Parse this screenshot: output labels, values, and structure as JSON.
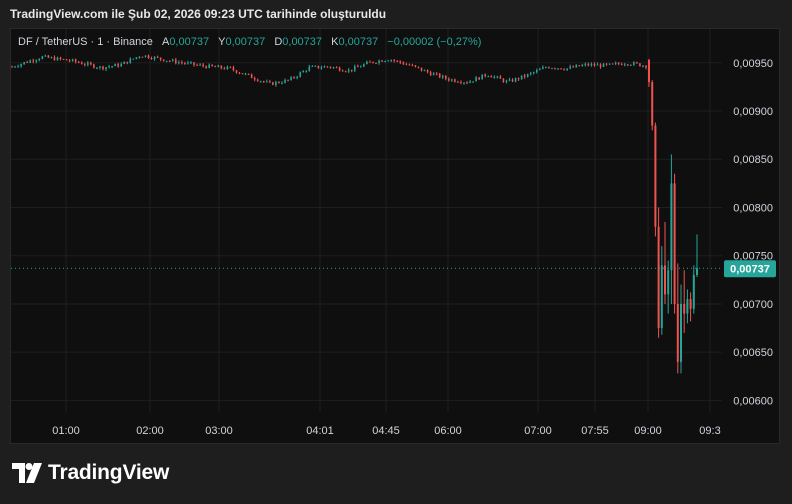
{
  "header": {
    "title": "TradingView.com ile Şub 02, 2026 09:23 UTC tarihinde oluşturuldu"
  },
  "legend": {
    "symbol": "DF / TetherUS · 1 · Binance",
    "open_label": "A",
    "open": "0,00737",
    "high_label": "Y",
    "high": "0,00737",
    "low_label": "D",
    "low": "0,00737",
    "close_label": "K",
    "close": "0,00737",
    "change": "−0,00002 (−0,27%)"
  },
  "logo": {
    "text": "TradingView"
  },
  "colors": {
    "up": "#26a69a",
    "down": "#ef5350",
    "background": "#0f0f0f",
    "grid": "#1f1f1f",
    "price_badge": "#26a69a"
  },
  "chart_data": {
    "type": "candlestick",
    "y_ticks": [
      "0,00950",
      "0,00900",
      "0,00850",
      "0,00800",
      "0,00750",
      "0,00700",
      "0,00650",
      "0,00600"
    ],
    "y_tick_values": [
      0.0095,
      0.009,
      0.0085,
      0.008,
      0.0075,
      0.007,
      0.0065,
      0.006
    ],
    "x_ticks": [
      "01:00",
      "02:00",
      "03:00",
      "04:01",
      "04:45",
      "06:00",
      "07:00",
      "07:55",
      "09:00",
      "09:3"
    ],
    "ylim": [
      0.00588,
      0.00985
    ],
    "grid": true,
    "current_price": 0.00737,
    "current_price_label": "0,00737",
    "series": [
      {
        "segment": "flat",
        "from": "00:20",
        "to": "08:55",
        "approx_path": [
          [
            0,
            0.00946
          ],
          [
            3,
            0.00956
          ],
          [
            6,
            0.00952
          ],
          [
            9,
            0.00945
          ],
          [
            11,
            0.00948
          ],
          [
            13,
            0.00958
          ],
          [
            16,
            0.00952
          ],
          [
            19,
            0.00947
          ],
          [
            22,
            0.00944
          ],
          [
            24,
            0.00936
          ],
          [
            26,
            0.00928
          ],
          [
            28,
            0.00932
          ],
          [
            30,
            0.00945
          ],
          [
            32,
            0.00946
          ],
          [
            34,
            0.00942
          ],
          [
            36,
            0.0095
          ],
          [
            38,
            0.00954
          ],
          [
            40,
            0.00948
          ],
          [
            42,
            0.0094
          ],
          [
            44,
            0.00933
          ],
          [
            46,
            0.0093
          ],
          [
            48,
            0.00938
          ],
          [
            50,
            0.0093
          ],
          [
            52,
            0.00937
          ],
          [
            54,
            0.00946
          ],
          [
            56,
            0.00944
          ],
          [
            58,
            0.00948
          ],
          [
            60,
            0.00947
          ],
          [
            62,
            0.0095
          ],
          [
            64,
            0.00947
          ]
        ]
      },
      {
        "segment": "drop",
        "from": "09:00",
        "to": "09:23",
        "candles": [
          [
            0.00953,
            0.00954,
            0.00925,
            0.0093
          ],
          [
            0.0093,
            0.00932,
            0.0088,
            0.00885
          ],
          [
            0.00885,
            0.00888,
            0.0077,
            0.0078
          ],
          [
            0.0078,
            0.008,
            0.00665,
            0.00675
          ],
          [
            0.00675,
            0.0076,
            0.00668,
            0.0074
          ],
          [
            0.0074,
            0.00785,
            0.007,
            0.0071
          ],
          [
            0.0071,
            0.00745,
            0.0069,
            0.00735
          ],
          [
            0.00735,
            0.00855,
            0.007,
            0.00825
          ],
          [
            0.00825,
            0.00835,
            0.0069,
            0.007
          ],
          [
            0.007,
            0.00742,
            0.00628,
            0.0064
          ],
          [
            0.0064,
            0.0072,
            0.00628,
            0.007
          ],
          [
            0.007,
            0.00735,
            0.0067,
            0.0069
          ],
          [
            0.0069,
            0.00715,
            0.0068,
            0.00705
          ],
          [
            0.00705,
            0.00712,
            0.00682,
            0.00695
          ],
          [
            0.00695,
            0.0074,
            0.0069,
            0.0073
          ],
          [
            0.0073,
            0.00772,
            0.00728,
            0.00737
          ]
        ]
      }
    ]
  }
}
